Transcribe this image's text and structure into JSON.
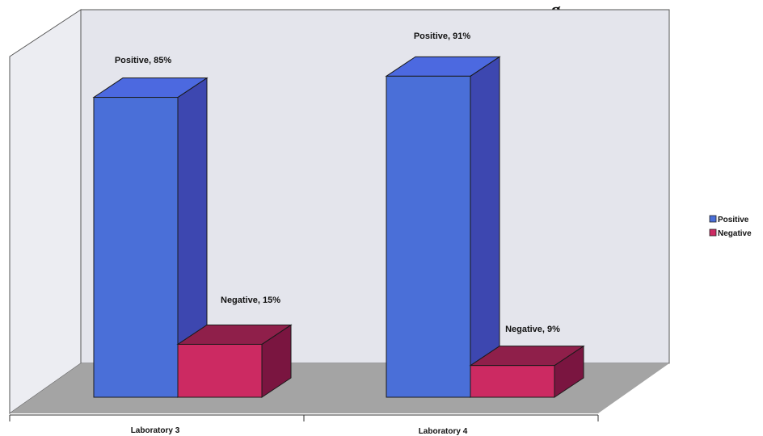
{
  "chart_data": {
    "type": "bar",
    "title": "g",
    "categories": [
      "Laboratory 3",
      "Laboratory 4"
    ],
    "series": [
      {
        "name": "Positive",
        "values": [
          85,
          91
        ],
        "data_labels": [
          "Positive, 85%",
          "Positive, 91%"
        ]
      },
      {
        "name": "Negative",
        "values": [
          15,
          9
        ],
        "data_labels": [
          "Negative, 15%",
          "Negative, 9%"
        ]
      }
    ],
    "unit": "%",
    "ylim": [
      0,
      100
    ],
    "grid": false,
    "legend_position": "right",
    "style": "3d-column"
  },
  "colors": {
    "positive_front": "#4a6fd8",
    "positive_side": "#3d47b0",
    "positive_top": "#4c69e0",
    "negative_front": "#cc2a62",
    "negative_side": "#7a1540",
    "negative_top": "#8f1f4a",
    "back_wall": "#e4e5ec",
    "left_wall": "#ecedf2",
    "floor": "#a4a4a4"
  }
}
